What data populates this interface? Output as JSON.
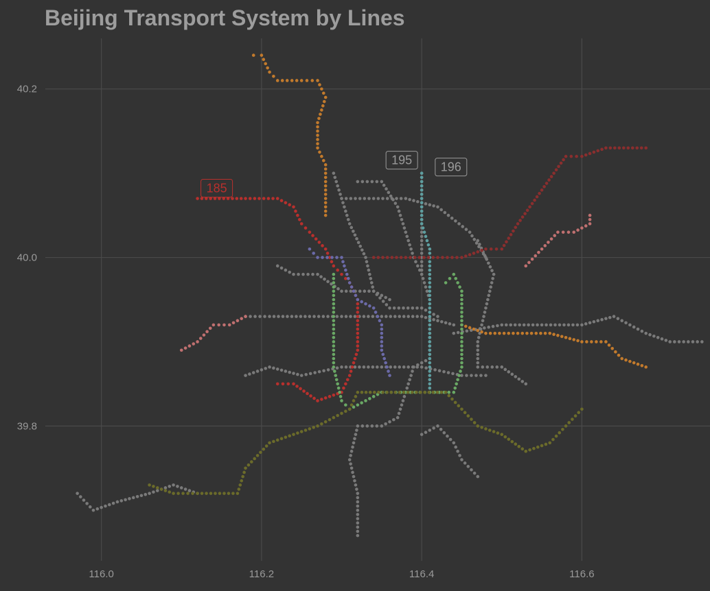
{
  "chart_data": {
    "type": "scatter",
    "title": "Beijing Transport System by Lines",
    "xlabel": "",
    "ylabel": "",
    "xlim": [
      115.93,
      116.76
    ],
    "ylim": [
      39.64,
      40.26
    ],
    "x_ticks": [
      {
        "value": 116.0,
        "label": "116.0"
      },
      {
        "value": 116.2,
        "label": "116.2"
      },
      {
        "value": 116.4,
        "label": "116.4"
      },
      {
        "value": 116.6,
        "label": "116.6"
      }
    ],
    "y_ticks": [
      {
        "value": 39.8,
        "label": "39.8"
      },
      {
        "value": 40.0,
        "label": "40.0"
      },
      {
        "value": 40.2,
        "label": "40.2"
      }
    ],
    "grid": true,
    "legend": "none",
    "colors": {
      "background": "#333333",
      "grid": "#4a4a4a",
      "tick_text": "#9a9a9a",
      "title": "#9d9d9d"
    },
    "series": [
      {
        "color": "#7a7a7a",
        "points": [
          [
            115.97,
            39.72
          ],
          [
            115.99,
            39.7
          ],
          [
            116.02,
            39.71
          ],
          [
            116.06,
            39.72
          ],
          [
            116.09,
            39.73
          ],
          [
            116.12,
            39.72
          ]
        ]
      },
      {
        "color": "#7a7a7a",
        "points": [
          [
            116.32,
            39.67
          ],
          [
            116.32,
            39.72
          ],
          [
            116.31,
            39.76
          ],
          [
            116.32,
            39.8
          ],
          [
            116.35,
            39.8
          ],
          [
            116.37,
            39.81
          ],
          [
            116.38,
            39.84
          ],
          [
            116.39,
            39.87
          ],
          [
            116.41,
            39.88
          ],
          [
            116.41,
            39.92
          ]
        ]
      },
      {
        "color": "#7a7a7a",
        "points": [
          [
            116.4,
            39.79
          ],
          [
            116.42,
            39.8
          ],
          [
            116.44,
            39.78
          ],
          [
            116.45,
            39.76
          ],
          [
            116.47,
            39.74
          ]
        ]
      },
      {
        "color": "#7a7a7a",
        "points": [
          [
            116.18,
            39.86
          ],
          [
            116.21,
            39.87
          ],
          [
            116.25,
            39.86
          ],
          [
            116.3,
            39.87
          ],
          [
            116.35,
            39.87
          ],
          [
            116.4,
            39.87
          ],
          [
            116.45,
            39.86
          ],
          [
            116.48,
            39.86
          ]
        ]
      },
      {
        "color": "#7a7a7a",
        "points": [
          [
            116.18,
            39.93
          ],
          [
            116.21,
            39.93
          ],
          [
            116.26,
            39.93
          ],
          [
            116.3,
            39.93
          ],
          [
            116.35,
            39.93
          ],
          [
            116.4,
            39.93
          ],
          [
            116.44,
            39.92
          ]
        ]
      },
      {
        "color": "#7a7a7a",
        "points": [
          [
            116.22,
            39.99
          ],
          [
            116.24,
            39.98
          ],
          [
            116.27,
            39.98
          ],
          [
            116.3,
            39.96
          ],
          [
            116.34,
            39.96
          ],
          [
            116.36,
            39.94
          ],
          [
            116.4,
            39.94
          ],
          [
            116.42,
            39.93
          ]
        ]
      },
      {
        "color": "#7a7a7a",
        "points": [
          [
            116.3,
            40.07
          ],
          [
            116.34,
            40.07
          ],
          [
            116.38,
            40.07
          ],
          [
            116.42,
            40.06
          ],
          [
            116.46,
            40.03
          ],
          [
            116.48,
            40.0
          ]
        ]
      },
      {
        "color": "#7a7a7a",
        "points": [
          [
            116.32,
            40.09
          ],
          [
            116.35,
            40.09
          ],
          [
            116.37,
            40.06
          ],
          [
            116.38,
            40.03
          ],
          [
            116.39,
            40.0
          ],
          [
            116.4,
            39.98
          ]
        ]
      },
      {
        "color": "#7a7a7a",
        "points": [
          [
            116.29,
            40.1
          ],
          [
            116.31,
            40.04
          ],
          [
            116.33,
            40.0
          ],
          [
            116.34,
            39.96
          ],
          [
            116.36,
            39.95
          ]
        ]
      },
      {
        "color": "#7a7a7a",
        "points": [
          [
            116.47,
            40.02
          ],
          [
            116.49,
            39.98
          ],
          [
            116.48,
            39.94
          ],
          [
            116.47,
            39.9
          ],
          [
            116.47,
            39.87
          ],
          [
            116.5,
            39.87
          ],
          [
            116.53,
            39.85
          ]
        ]
      },
      {
        "color": "#7a7a7a",
        "points": [
          [
            116.44,
            39.91
          ],
          [
            116.5,
            39.92
          ],
          [
            116.55,
            39.92
          ],
          [
            116.6,
            39.92
          ],
          [
            116.64,
            39.93
          ],
          [
            116.66,
            39.92
          ],
          [
            116.68,
            39.91
          ],
          [
            116.71,
            39.9
          ],
          [
            116.75,
            39.9
          ]
        ]
      },
      {
        "color": "#7a7a7a",
        "points": [
          [
            116.4,
            40.1
          ],
          [
            116.4,
            40.06
          ],
          [
            116.4,
            40.02
          ],
          [
            116.4,
            39.98
          ],
          [
            116.41,
            39.95
          ]
        ]
      },
      {
        "color": "#c27a2c",
        "points": [
          [
            116.19,
            40.24
          ],
          [
            116.2,
            40.24
          ],
          [
            116.21,
            40.22
          ],
          [
            116.22,
            40.21
          ],
          [
            116.25,
            40.21
          ],
          [
            116.27,
            40.21
          ],
          [
            116.28,
            40.19
          ],
          [
            116.27,
            40.16
          ],
          [
            116.27,
            40.13
          ],
          [
            116.28,
            40.11
          ],
          [
            116.28,
            40.08
          ],
          [
            116.28,
            40.05
          ]
        ]
      },
      {
        "color": "#c27a2c",
        "points": [
          [
            116.45,
            39.92
          ],
          [
            116.48,
            39.91
          ],
          [
            116.52,
            39.91
          ],
          [
            116.56,
            39.91
          ],
          [
            116.6,
            39.9
          ],
          [
            116.63,
            39.9
          ],
          [
            116.65,
            39.88
          ],
          [
            116.68,
            39.87
          ]
        ]
      },
      {
        "color": "#b8302d",
        "points": [
          [
            116.12,
            40.07
          ],
          [
            116.18,
            40.07
          ],
          [
            116.22,
            40.07
          ],
          [
            116.24,
            40.06
          ],
          [
            116.25,
            40.04
          ],
          [
            116.26,
            40.03
          ],
          [
            116.28,
            40.01
          ],
          [
            116.29,
            39.99
          ],
          [
            116.3,
            39.98
          ],
          [
            116.31,
            39.97
          ],
          [
            116.32,
            39.95
          ],
          [
            116.32,
            39.92
          ],
          [
            116.32,
            39.89
          ],
          [
            116.31,
            39.86
          ],
          [
            116.3,
            39.84
          ],
          [
            116.27,
            39.83
          ],
          [
            116.24,
            39.85
          ],
          [
            116.22,
            39.85
          ]
        ]
      },
      {
        "color": "#5e9ea0",
        "points": [
          [
            116.4,
            40.1
          ],
          [
            116.4,
            40.07
          ],
          [
            116.4,
            40.04
          ],
          [
            116.41,
            40.01
          ],
          [
            116.41,
            39.98
          ],
          [
            116.41,
            39.95
          ],
          [
            116.41,
            39.92
          ],
          [
            116.41,
            39.89
          ],
          [
            116.41,
            39.86
          ],
          [
            116.41,
            39.84
          ]
        ]
      },
      {
        "color": "#6b6aa8",
        "points": [
          [
            116.26,
            40.01
          ],
          [
            116.27,
            40.0
          ],
          [
            116.3,
            40.0
          ],
          [
            116.31,
            39.97
          ],
          [
            116.32,
            39.95
          ],
          [
            116.34,
            39.94
          ],
          [
            116.35,
            39.92
          ],
          [
            116.35,
            39.89
          ],
          [
            116.36,
            39.86
          ]
        ]
      },
      {
        "color": "#6aa865",
        "points": [
          [
            116.29,
            39.98
          ],
          [
            116.29,
            39.95
          ],
          [
            116.29,
            39.91
          ],
          [
            116.29,
            39.87
          ],
          [
            116.3,
            39.83
          ],
          [
            116.31,
            39.82
          ],
          [
            116.35,
            39.84
          ],
          [
            116.38,
            39.84
          ],
          [
            116.41,
            39.84
          ],
          [
            116.44,
            39.84
          ],
          [
            116.45,
            39.87
          ],
          [
            116.45,
            39.92
          ],
          [
            116.45,
            39.96
          ],
          [
            116.44,
            39.98
          ],
          [
            116.43,
            39.97
          ]
        ]
      },
      {
        "color": "#6b6b2a",
        "points": [
          [
            116.06,
            39.73
          ],
          [
            116.09,
            39.72
          ],
          [
            116.12,
            39.72
          ],
          [
            116.17,
            39.72
          ],
          [
            116.18,
            39.75
          ],
          [
            116.21,
            39.78
          ],
          [
            116.24,
            39.79
          ],
          [
            116.27,
            39.8
          ],
          [
            116.29,
            39.81
          ],
          [
            116.31,
            39.82
          ],
          [
            116.32,
            39.84
          ],
          [
            116.43,
            39.84
          ],
          [
            116.45,
            39.82
          ],
          [
            116.47,
            39.8
          ],
          [
            116.5,
            39.79
          ],
          [
            116.53,
            39.77
          ],
          [
            116.56,
            39.78
          ],
          [
            116.58,
            39.8
          ],
          [
            116.6,
            39.82
          ]
        ]
      },
      {
        "color": "#8a2e2e",
        "points": [
          [
            116.34,
            40.0
          ],
          [
            116.38,
            40.0
          ],
          [
            116.42,
            40.0
          ],
          [
            116.45,
            40.0
          ],
          [
            116.48,
            40.01
          ],
          [
            116.5,
            40.01
          ],
          [
            116.52,
            40.04
          ],
          [
            116.55,
            40.08
          ],
          [
            116.58,
            40.12
          ],
          [
            116.6,
            40.12
          ],
          [
            116.63,
            40.13
          ],
          [
            116.68,
            40.13
          ]
        ]
      },
      {
        "color": "#c07070",
        "points": [
          [
            116.1,
            39.89
          ],
          [
            116.12,
            39.9
          ],
          [
            116.14,
            39.92
          ],
          [
            116.16,
            39.92
          ],
          [
            116.18,
            39.93
          ]
        ]
      },
      {
        "color": "#c07070",
        "points": [
          [
            116.53,
            39.99
          ],
          [
            116.55,
            40.01
          ],
          [
            116.57,
            40.03
          ],
          [
            116.59,
            40.03
          ],
          [
            116.61,
            40.04
          ],
          [
            116.61,
            40.05
          ]
        ]
      }
    ],
    "annotations": [
      {
        "label": "185",
        "x": 116.12,
        "y": 40.07,
        "color": "#b8302d"
      },
      {
        "label": "195",
        "x": 116.4,
        "y": 40.1,
        "color": "#9a9a9a"
      },
      {
        "label": "196",
        "x": 116.41,
        "y": 40.1,
        "color": "#9a9a9a"
      }
    ]
  }
}
